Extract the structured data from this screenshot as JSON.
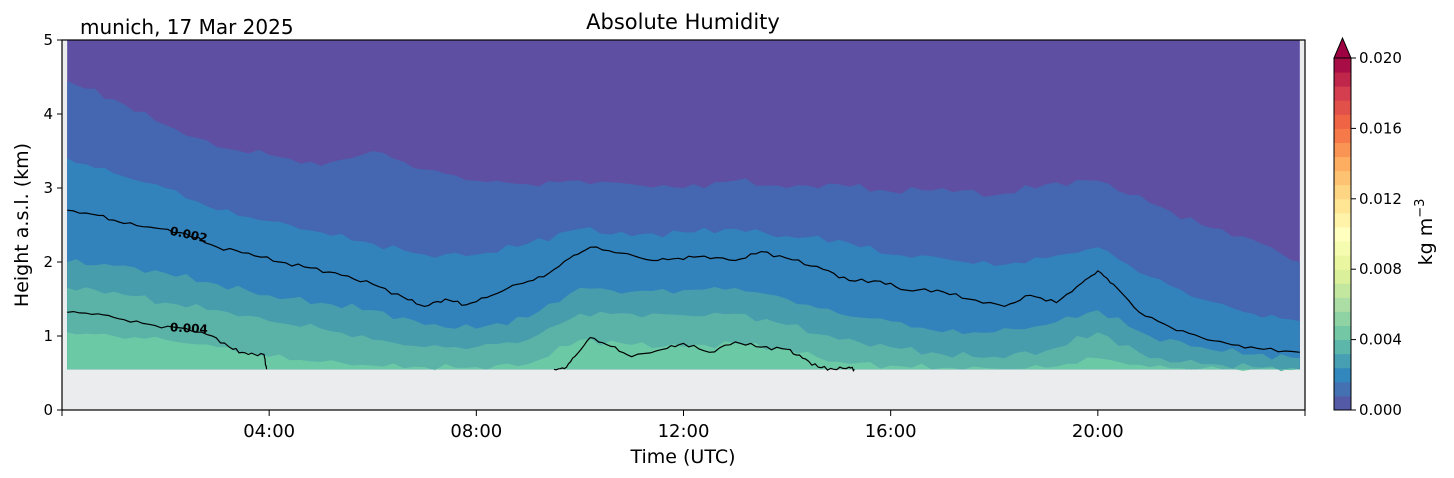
{
  "chart_data": {
    "type": "heatmap",
    "title": "Absolute Humidity",
    "location_date": "munich, 17 Mar 2025",
    "xlabel": "Time (UTC)",
    "ylabel": "Height a.s.l. (km)",
    "x_range_hours": [
      0,
      24
    ],
    "x_ticks": [
      {
        "hour": 4,
        "label": "04:00"
      },
      {
        "hour": 8,
        "label": "08:00"
      },
      {
        "hour": 12,
        "label": "12:00"
      },
      {
        "hour": 16,
        "label": "16:00"
      },
      {
        "hour": 20,
        "label": "20:00"
      }
    ],
    "y_range_km": [
      0,
      5
    ],
    "y_ticks": [
      {
        "value": 0,
        "label": "0"
      },
      {
        "value": 1,
        "label": "1"
      },
      {
        "value": 2,
        "label": "2"
      },
      {
        "value": 3,
        "label": "3"
      },
      {
        "value": 4,
        "label": "4"
      },
      {
        "value": 5,
        "label": "5"
      }
    ],
    "data_bottom_km": 0.55,
    "colorbar": {
      "label": "kg m",
      "label_superscript": "−3",
      "range": [
        0.0,
        0.02
      ],
      "extend": "max",
      "ticks": [
        {
          "value": 0.0,
          "label": "0.000"
        },
        {
          "value": 0.004,
          "label": "0.004"
        },
        {
          "value": 0.008,
          "label": "0.008"
        },
        {
          "value": 0.012,
          "label": "0.012"
        },
        {
          "value": 0.016,
          "label": "0.016"
        },
        {
          "value": 0.02,
          "label": "0.020"
        }
      ],
      "colors": [
        "#5e4fa2",
        "#3288bd",
        "#66c2a5",
        "#abdda4",
        "#e6f598",
        "#ffffbf",
        "#fee08b",
        "#fdae61",
        "#f46d43",
        "#d53e4f",
        "#9e0142"
      ],
      "extend_color": "#9e0142"
    },
    "band_colors": [
      "#6bc9a6",
      "#5bb3a8",
      "#479dac",
      "#3282bc",
      "#4566b0",
      "#5e4fa2"
    ],
    "missing_color": "#ebeced",
    "isolines": [
      {
        "label": "0.002",
        "label_hour": 2.2,
        "points": [
          [
            0.1,
            2.7
          ],
          [
            0.7,
            2.63
          ],
          [
            1.2,
            2.52
          ],
          [
            1.8,
            2.46
          ],
          [
            2.4,
            2.38
          ],
          [
            3.0,
            2.2
          ],
          [
            3.6,
            2.12
          ],
          [
            4.2,
            2.0
          ],
          [
            4.8,
            1.92
          ],
          [
            5.4,
            1.82
          ],
          [
            6.0,
            1.7
          ],
          [
            6.6,
            1.52
          ],
          [
            7.0,
            1.4
          ],
          [
            7.4,
            1.5
          ],
          [
            7.8,
            1.42
          ],
          [
            8.3,
            1.55
          ],
          [
            8.8,
            1.7
          ],
          [
            9.3,
            1.8
          ],
          [
            9.8,
            2.05
          ],
          [
            10.2,
            2.2
          ],
          [
            10.8,
            2.12
          ],
          [
            11.4,
            2.02
          ],
          [
            11.9,
            2.05
          ],
          [
            12.4,
            2.08
          ],
          [
            13.0,
            2.02
          ],
          [
            13.5,
            2.14
          ],
          [
            14.1,
            2.03
          ],
          [
            14.7,
            1.9
          ],
          [
            15.2,
            1.75
          ],
          [
            15.8,
            1.74
          ],
          [
            16.3,
            1.62
          ],
          [
            16.9,
            1.62
          ],
          [
            17.5,
            1.5
          ],
          [
            18.2,
            1.4
          ],
          [
            18.7,
            1.55
          ],
          [
            19.2,
            1.45
          ],
          [
            19.7,
            1.72
          ],
          [
            20.0,
            1.88
          ],
          [
            20.3,
            1.7
          ],
          [
            20.8,
            1.32
          ],
          [
            21.4,
            1.12
          ],
          [
            22.0,
            0.98
          ],
          [
            22.6,
            0.88
          ],
          [
            23.2,
            0.82
          ],
          [
            23.9,
            0.78
          ]
        ]
      },
      {
        "label": "0.004",
        "label_hour": 2.2,
        "points": [
          [
            0.1,
            1.32
          ],
          [
            0.7,
            1.3
          ],
          [
            1.2,
            1.22
          ],
          [
            1.8,
            1.14
          ],
          [
            2.4,
            1.1
          ],
          [
            2.9,
            1.0
          ],
          [
            3.3,
            0.82
          ],
          [
            3.6,
            0.75
          ],
          [
            3.9,
            0.75
          ],
          [
            3.95,
            0.55
          ]
        ]
      },
      {
        "label": "",
        "label_hour": null,
        "points": [
          [
            9.5,
            0.55
          ],
          [
            9.7,
            0.56
          ],
          [
            9.9,
            0.72
          ],
          [
            10.2,
            0.98
          ],
          [
            10.6,
            0.86
          ],
          [
            11.0,
            0.72
          ],
          [
            11.6,
            0.82
          ],
          [
            12.0,
            0.9
          ],
          [
            12.5,
            0.78
          ],
          [
            13.0,
            0.92
          ],
          [
            13.5,
            0.85
          ],
          [
            14.0,
            0.82
          ],
          [
            14.3,
            0.7
          ],
          [
            14.6,
            0.58
          ],
          [
            14.9,
            0.55
          ],
          [
            15.2,
            0.58
          ],
          [
            15.3,
            0.55
          ]
        ]
      }
    ],
    "band_boundaries": [
      {
        "name": "upper",
        "points": [
          [
            0,
            4.45
          ],
          [
            1,
            4.2
          ],
          [
            2,
            3.85
          ],
          [
            3,
            3.55
          ],
          [
            4,
            3.45
          ],
          [
            5,
            3.3
          ],
          [
            6,
            3.5
          ],
          [
            7,
            3.25
          ],
          [
            8,
            3.1
          ],
          [
            9,
            3.05
          ],
          [
            10,
            3.1
          ],
          [
            11,
            3.05
          ],
          [
            12,
            3.0
          ],
          [
            13,
            3.1
          ],
          [
            14,
            3.0
          ],
          [
            15,
            3.05
          ],
          [
            16,
            2.95
          ],
          [
            17,
            3.0
          ],
          [
            18,
            2.9
          ],
          [
            19,
            3.05
          ],
          [
            20,
            3.1
          ],
          [
            21,
            2.8
          ],
          [
            22,
            2.5
          ],
          [
            23,
            2.3
          ],
          [
            24,
            2.0
          ]
        ]
      },
      {
        "name": "lower",
        "points": [
          [
            0,
            3.4
          ],
          [
            1,
            3.2
          ],
          [
            2,
            3.0
          ],
          [
            3,
            2.7
          ],
          [
            4,
            2.55
          ],
          [
            5,
            2.4
          ],
          [
            6,
            2.25
          ],
          [
            7,
            2.1
          ],
          [
            8,
            2.1
          ],
          [
            9,
            2.25
          ],
          [
            10,
            2.45
          ],
          [
            11,
            2.35
          ],
          [
            12,
            2.4
          ],
          [
            13,
            2.45
          ],
          [
            14,
            2.35
          ],
          [
            15,
            2.3
          ],
          [
            16,
            2.1
          ],
          [
            17,
            2.05
          ],
          [
            18,
            1.95
          ],
          [
            19,
            2.05
          ],
          [
            20,
            2.2
          ],
          [
            21,
            1.8
          ],
          [
            22,
            1.5
          ],
          [
            23,
            1.3
          ],
          [
            24,
            1.2
          ]
        ]
      },
      {
        "name": "b3",
        "points": [
          [
            0,
            2.0
          ],
          [
            1,
            1.95
          ],
          [
            2,
            1.85
          ],
          [
            3,
            1.7
          ],
          [
            4,
            1.55
          ],
          [
            5,
            1.45
          ],
          [
            6,
            1.35
          ],
          [
            7,
            1.15
          ],
          [
            8,
            1.1
          ],
          [
            9,
            1.25
          ],
          [
            10,
            1.65
          ],
          [
            11,
            1.6
          ],
          [
            12,
            1.62
          ],
          [
            13,
            1.65
          ],
          [
            14,
            1.5
          ],
          [
            15,
            1.3
          ],
          [
            16,
            1.2
          ],
          [
            17,
            1.05
          ],
          [
            18,
            1.05
          ],
          [
            19,
            1.15
          ],
          [
            20,
            1.35
          ],
          [
            21,
            1.0
          ],
          [
            22,
            0.85
          ],
          [
            23,
            0.75
          ],
          [
            24,
            0.7
          ]
        ]
      },
      {
        "name": "b2",
        "points": [
          [
            0,
            1.65
          ],
          [
            1,
            1.6
          ],
          [
            2,
            1.45
          ],
          [
            3,
            1.35
          ],
          [
            4,
            1.2
          ],
          [
            5,
            1.1
          ],
          [
            6,
            0.95
          ],
          [
            7,
            0.85
          ],
          [
            8,
            0.85
          ],
          [
            9,
            0.95
          ],
          [
            10,
            1.3
          ],
          [
            11,
            1.3
          ],
          [
            12,
            1.28
          ],
          [
            13,
            1.3
          ],
          [
            14,
            1.15
          ],
          [
            15,
            0.95
          ],
          [
            16,
            0.85
          ],
          [
            17,
            0.75
          ],
          [
            18,
            0.72
          ],
          [
            19,
            0.8
          ],
          [
            20,
            1.05
          ],
          [
            21,
            0.7
          ],
          [
            22,
            0.62
          ],
          [
            23,
            0.58
          ],
          [
            24,
            0.55
          ]
        ]
      },
      {
        "name": "b1",
        "points": [
          [
            0,
            1.05
          ],
          [
            1,
            1.0
          ],
          [
            2,
            0.95
          ],
          [
            3,
            0.85
          ],
          [
            4,
            0.72
          ],
          [
            5,
            0.65
          ],
          [
            6,
            0.6
          ],
          [
            7,
            0.58
          ],
          [
            8,
            0.58
          ],
          [
            9,
            0.62
          ],
          [
            10,
            0.95
          ],
          [
            11,
            0.88
          ],
          [
            12,
            0.85
          ],
          [
            13,
            0.9
          ],
          [
            14,
            0.82
          ],
          [
            15,
            0.65
          ],
          [
            16,
            0.6
          ],
          [
            17,
            0.57
          ],
          [
            18,
            0.56
          ],
          [
            19,
            0.57
          ],
          [
            20,
            0.7
          ],
          [
            21,
            0.58
          ],
          [
            22,
            0.56
          ],
          [
            23,
            0.55
          ],
          [
            24,
            0.55
          ]
        ]
      }
    ]
  }
}
